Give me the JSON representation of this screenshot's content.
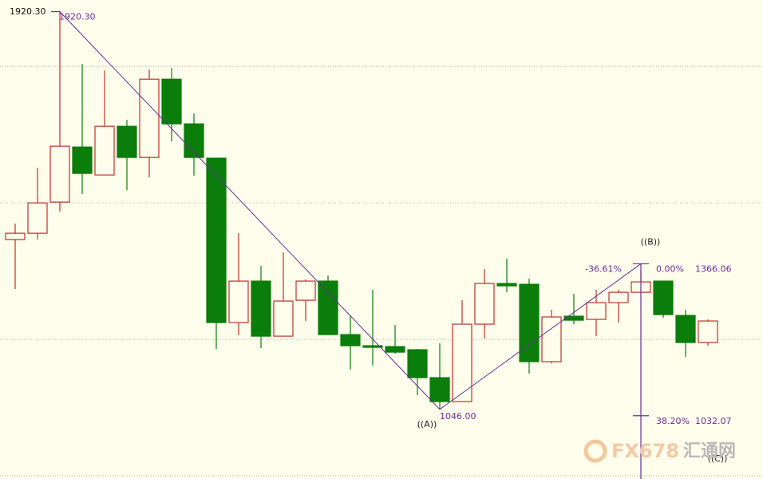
{
  "chart_data": {
    "type": "candlestick",
    "ylim": [
      893,
      1946
    ],
    "yticks": [
      900,
      1200,
      1500,
      1800
    ],
    "grid": true,
    "up_color": "#c0302a",
    "down_color": "#0a7d0a",
    "wave_color": "#6a2d9a",
    "open": [
      1419.3,
      1433.3,
      1501.8,
      1622.8,
      1561.4,
      1668.4,
      1600.0,
      1771.9,
      1673.7,
      1598.3,
      1236.9,
      1328.1,
      1207.0,
      1286.0,
      1328.1,
      1210.5,
      1186.0,
      1184.2,
      1177.2,
      1115.8,
      1063.2,
      1233.4,
      1322.8,
      1321.1,
      1150.9,
      1250.9,
      1243.9,
      1280.7,
      1303.5,
      1328.1,
      1252.6,
      1193.0
    ],
    "high": [
      1454.4,
      1577.2,
      1920.3,
      1805.3,
      1791.2,
      1682.5,
      1793.0,
      1796.5,
      1696.5,
      1598.3,
      1433.3,
      1361.4,
      1391.2,
      1331.6,
      1340.4,
      1252.6,
      1308.8,
      1231.6,
      1179.0,
      1191.2,
      1286.0,
      1354.4,
      1377.2,
      1333.4,
      1264.9,
      1300.0,
      1308.8,
      1308.8,
      1349.1,
      1328.1,
      1264.9,
      1243.9
    ],
    "low": [
      1310.5,
      1419.3,
      1480.7,
      1519.3,
      1561.4,
      1528.1,
      1556.1,
      1635.1,
      1559.7,
      1179.0,
      1208.8,
      1180.7,
      1207.0,
      1240.4,
      1208.8,
      1133.4,
      1142.1,
      1168.4,
      1077.2,
      1046.0,
      1063.2,
      1201.8,
      1303.5,
      1124.6,
      1147.4,
      1233.4,
      1207.0,
      1236.9,
      1303.5,
      1247.4,
      1161.4,
      1186.0
    ],
    "close": [
      1433.3,
      1500.0,
      1624.6,
      1564.9,
      1668.4,
      1600.0,
      1771.9,
      1673.7,
      1600.0,
      1236.9,
      1328.1,
      1207.0,
      1284.2,
      1328.1,
      1210.5,
      1186.0,
      1182.5,
      1171.9,
      1115.8,
      1063.2,
      1233.4,
      1322.8,
      1317.6,
      1150.9,
      1249.2,
      1242.1,
      1280.7,
      1303.5,
      1326.3,
      1254.4,
      1193.0,
      1240.4
    ],
    "waves": [
      {
        "price": {
          "value": 1920.3,
          "label": "1920.30"
        },
        "candle": 2
      },
      {
        "label": "((A))",
        "price": {
          "value": 1046,
          "label": "1046.00"
        },
        "candle": 19
      },
      {
        "label": "((B))",
        "price": 1366.06,
        "candle": 28
      }
    ],
    "fibonacci": {
      "retracement_label": "-36.61%",
      "levels": [
        {
          "label": "0.00%",
          "price": 1366.06
        },
        {
          "label": "38.20%",
          "price": 1032.07
        }
      ],
      "target_label": "((C))"
    },
    "watermark": [
      "FX678",
      "汇通网"
    ]
  }
}
